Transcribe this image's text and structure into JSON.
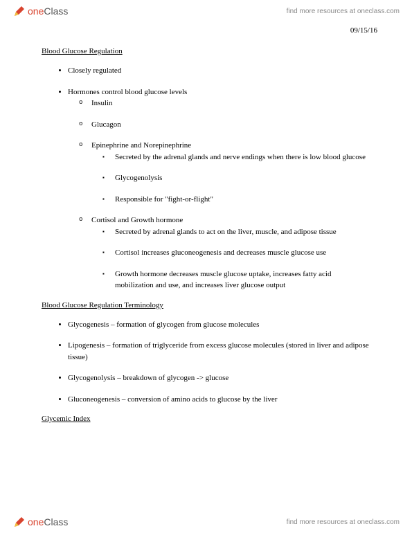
{
  "brand": {
    "part1": "one",
    "part2": "Class",
    "tagline": "find more resources at oneclass.com"
  },
  "date": "09/15/16",
  "sections": [
    {
      "title": "Blood Glucose Regulation",
      "bullets": [
        {
          "text": "Closely regulated"
        },
        {
          "text": "Hormones control blood glucose levels",
          "sub": [
            {
              "text": "Insulin"
            },
            {
              "text": "Glucagon"
            },
            {
              "text": "Epinephrine and Norepinephrine",
              "sub": [
                {
                  "text": "Secreted by the adrenal glands and nerve endings when there is low blood glucose"
                },
                {
                  "text": "Glycogenolysis"
                },
                {
                  "text": "Responsible for \"fight-or-flight\""
                }
              ]
            },
            {
              "text": "Cortisol and Growth hormone",
              "sub": [
                {
                  "text": "Secreted by adrenal glands to act on the liver, muscle, and adipose tissue"
                },
                {
                  "text": "Cortisol increases gluconeogenesis and decreases muscle glucose use"
                },
                {
                  "text": "Growth hormone decreases muscle glucose uptake, increases fatty acid mobilization and use, and increases liver glucose output"
                }
              ]
            }
          ]
        }
      ]
    },
    {
      "title": "Blood Glucose Regulation Terminology",
      "bullets": [
        {
          "text": "Glycogenesis – formation of glycogen from glucose molecules"
        },
        {
          "text": "Lipogenesis – formation of triglyceride from excess glucose molecules (stored in liver and adipose tissue)"
        },
        {
          "text": "Glycogenolysis – breakdown of glycogen -> glucose"
        },
        {
          "text": "Gluconeogenesis – conversion of amino acids to glucose by the liver"
        }
      ]
    },
    {
      "title": "Glycemic Index",
      "bullets": []
    }
  ]
}
